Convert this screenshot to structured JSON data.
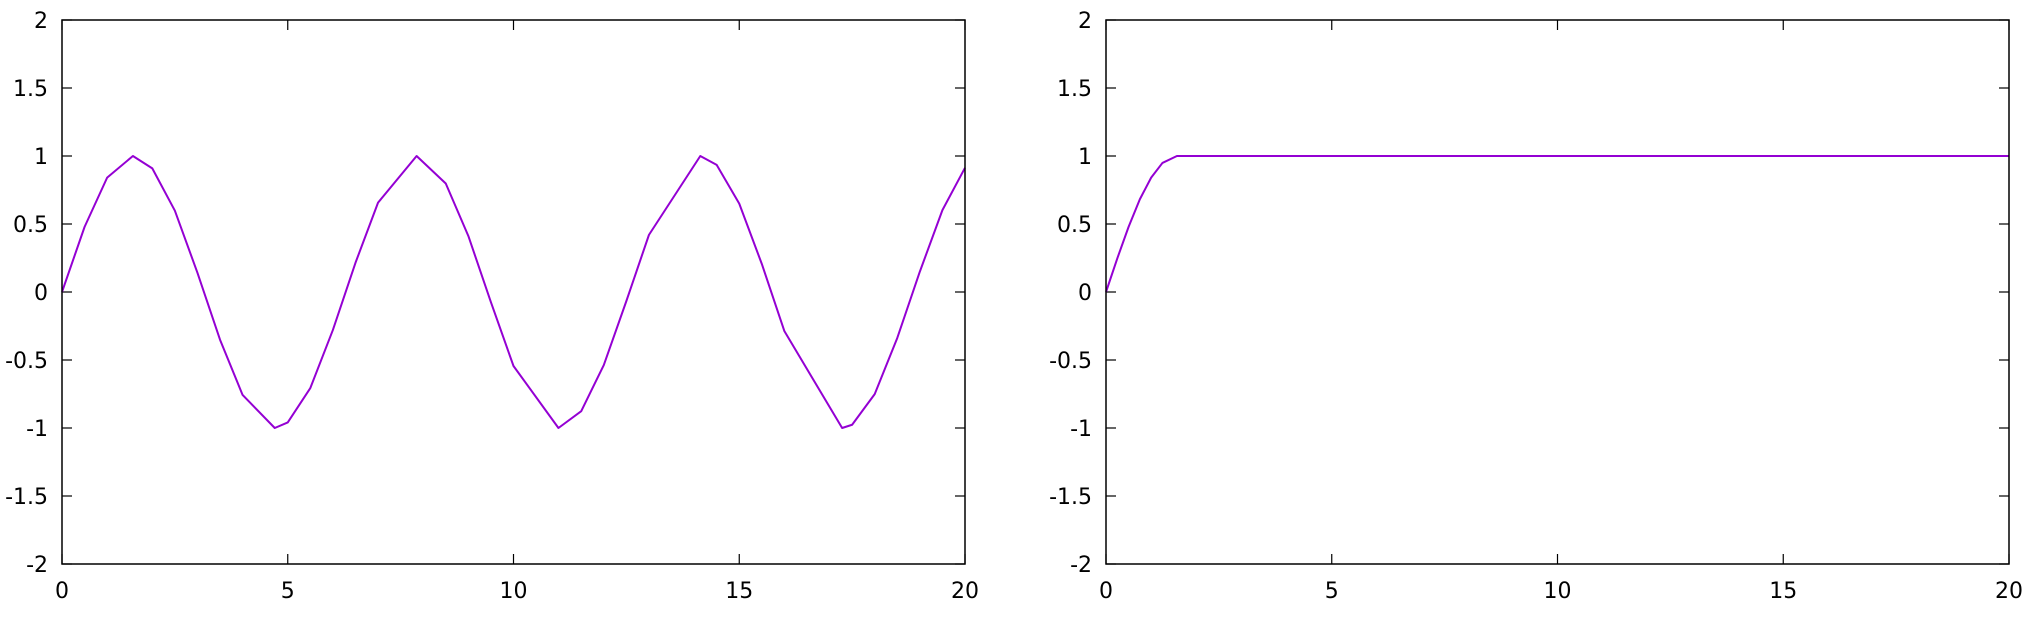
{
  "chart_data": [
    {
      "type": "line",
      "title": "",
      "xlabel": "",
      "ylabel": "",
      "xlim": [
        0,
        20
      ],
      "ylim": [
        -2,
        2
      ],
      "xticks": [
        0,
        5,
        10,
        15,
        20
      ],
      "yticks": [
        -2,
        -1.5,
        -1,
        -0.5,
        0,
        0.5,
        1,
        1.5,
        2
      ],
      "xtick_labels": [
        "0",
        "5",
        "10",
        "15",
        "20"
      ],
      "ytick_labels": [
        "-2",
        "-1.5",
        "-1",
        "-0.5",
        "0",
        "0.5",
        "1",
        "1.5",
        "2"
      ],
      "grid": false,
      "legend": "none",
      "series": [
        {
          "color": "#9400d3",
          "x": [
            0,
            0.5,
            1,
            1.5708,
            2,
            2.5,
            3,
            3.5,
            4,
            4.7124,
            5,
            5.5,
            6,
            6.5,
            7,
            7.854,
            8.5,
            9,
            9.5,
            10,
            10.9956,
            11.5,
            12,
            12.5,
            13,
            14.1372,
            14.5,
            15,
            15.5,
            16,
            17.2788,
            17.5,
            18,
            18.5,
            19,
            19.5,
            20
          ],
          "y": [
            0,
            0.479,
            0.841,
            1,
            0.909,
            0.598,
            0.141,
            -0.351,
            -0.757,
            -1,
            -0.959,
            -0.706,
            -0.279,
            0.215,
            0.657,
            1,
            0.798,
            0.412,
            -0.075,
            -0.544,
            -1,
            -0.876,
            -0.537,
            -0.066,
            0.42,
            1,
            0.935,
            0.65,
            0.206,
            -0.288,
            -1,
            -0.976,
            -0.751,
            -0.338,
            0.15,
            0.602,
            0.913
          ]
        }
      ]
    },
    {
      "type": "line",
      "title": "",
      "xlabel": "",
      "ylabel": "",
      "xlim": [
        0,
        20
      ],
      "ylim": [
        -2,
        2
      ],
      "xticks": [
        0,
        5,
        10,
        15,
        20
      ],
      "yticks": [
        -2,
        -1.5,
        -1,
        -0.5,
        0,
        0.5,
        1,
        1.5,
        2
      ],
      "xtick_labels": [
        "0",
        "5",
        "10",
        "15",
        "20"
      ],
      "ytick_labels": [
        "-2",
        "-1.5",
        "-1",
        "-0.5",
        "0",
        "0.5",
        "1",
        "1.5",
        "2"
      ],
      "grid": false,
      "legend": "none",
      "series": [
        {
          "color": "#9400d3",
          "x": [
            0,
            0.25,
            0.5,
            0.75,
            1,
            1.25,
            1.5708,
            3,
            5,
            10,
            15,
            20
          ],
          "y": [
            0,
            0.247,
            0.479,
            0.682,
            0.841,
            0.949,
            1,
            1,
            1,
            1,
            1,
            1
          ]
        }
      ]
    }
  ]
}
